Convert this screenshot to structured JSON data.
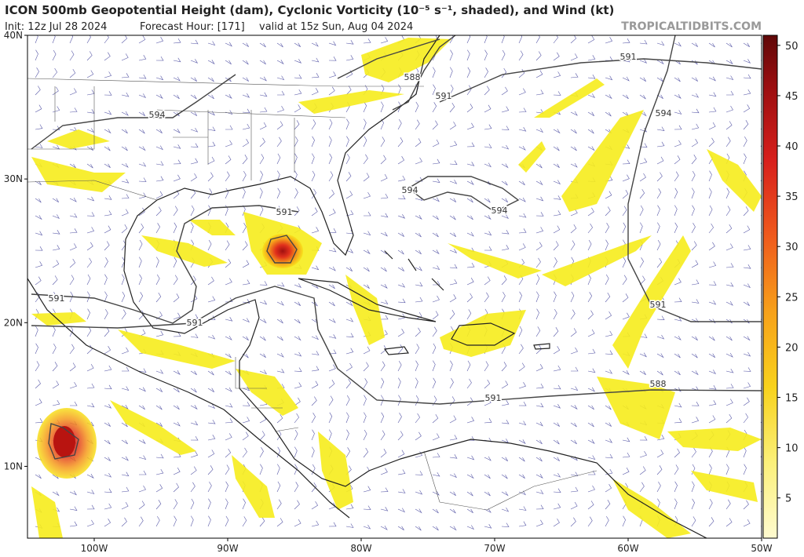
{
  "header": {
    "title": "ICON 500mb Geopotential Height (dam), Cyclonic Vorticity (10⁻⁵ s⁻¹, shaded), and Wind (kt)",
    "init": "Init: 12z Jul 28 2024",
    "forecast_hour": "Forecast Hour: [171]",
    "valid": "valid at 15z Sun, Aug 04 2024",
    "source": "TROPICALTIDBITS.COM"
  },
  "map": {
    "lon_range": [
      -105,
      -50
    ],
    "lat_range": [
      5,
      40
    ],
    "lat_ticks": [
      {
        "value": 40,
        "label": "40N"
      },
      {
        "value": 30,
        "label": "30N"
      },
      {
        "value": 20,
        "label": "20N"
      },
      {
        "value": 10,
        "label": "10N"
      }
    ],
    "lon_ticks": [
      {
        "value": -100,
        "label": "100W"
      },
      {
        "value": -90,
        "label": "90W"
      },
      {
        "value": -80,
        "label": "80W"
      },
      {
        "value": -70,
        "label": "70W"
      },
      {
        "value": -60,
        "label": "60W"
      },
      {
        "value": -50,
        "label": "50W"
      }
    ],
    "contour_labels": [
      "591",
      "588",
      "591",
      "594",
      "594",
      "594",
      "591",
      "591",
      "591",
      "594",
      "591",
      "591",
      "588"
    ],
    "colorbar": {
      "range": [
        1,
        51
      ],
      "ticks": [
        5,
        10,
        15,
        20,
        25,
        30,
        35,
        40,
        45,
        50
      ]
    }
  }
}
